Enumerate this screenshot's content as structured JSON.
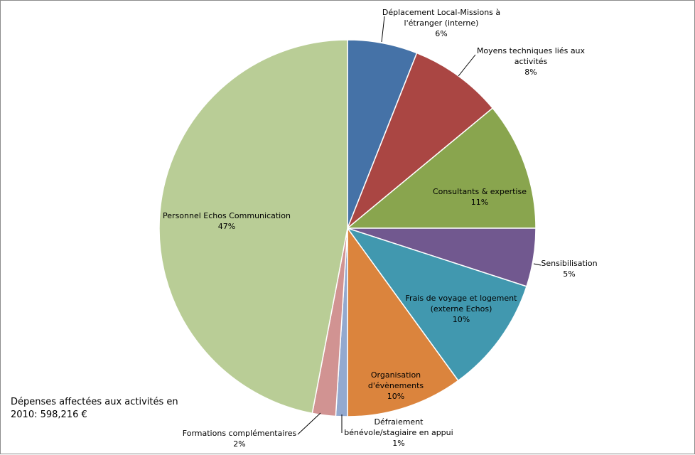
{
  "chart_data": {
    "type": "pie",
    "slices": [
      {
        "label_lines": [
          "Déplacement Local-Missions à",
          "l'étranger (interne)"
        ],
        "percent_label": "6%",
        "value": 6,
        "color": "#4572A7"
      },
      {
        "label_lines": [
          "Moyens techniques liés aux",
          "activités"
        ],
        "percent_label": "8%",
        "value": 8,
        "color": "#AA4643"
      },
      {
        "label_lines": [
          "Consultants & expertise"
        ],
        "percent_label": "11%",
        "value": 11,
        "color": "#89A54E"
      },
      {
        "label_lines": [
          "Sensibilisation"
        ],
        "percent_label": "5%",
        "value": 5,
        "color": "#71588F"
      },
      {
        "label_lines": [
          "Frais de voyage et  logement",
          "(externe Echos)"
        ],
        "percent_label": "10%",
        "value": 10,
        "color": "#4198AF"
      },
      {
        "label_lines": [
          "Organisation",
          "d'évènements"
        ],
        "percent_label": "10%",
        "value": 10,
        "color": "#DB843D"
      },
      {
        "label_lines": [
          "Défraiement",
          "bénévole/stagiaire en appui"
        ],
        "percent_label": "1%",
        "value": 1,
        "color": "#93A9CF"
      },
      {
        "label_lines": [
          "Formations complémentaires"
        ],
        "percent_label": "2%",
        "value": 2,
        "color": "#D19392"
      },
      {
        "label_lines": [
          "Personnel Echos Communication"
        ],
        "percent_label": "47%",
        "value": 47,
        "color": "#B9CD96"
      }
    ],
    "note": "Dépenses affectées aux activités en\n2010:  598,216  €",
    "legend": "none (data labels)",
    "start_angle": "12 o'clock, clockwise"
  }
}
